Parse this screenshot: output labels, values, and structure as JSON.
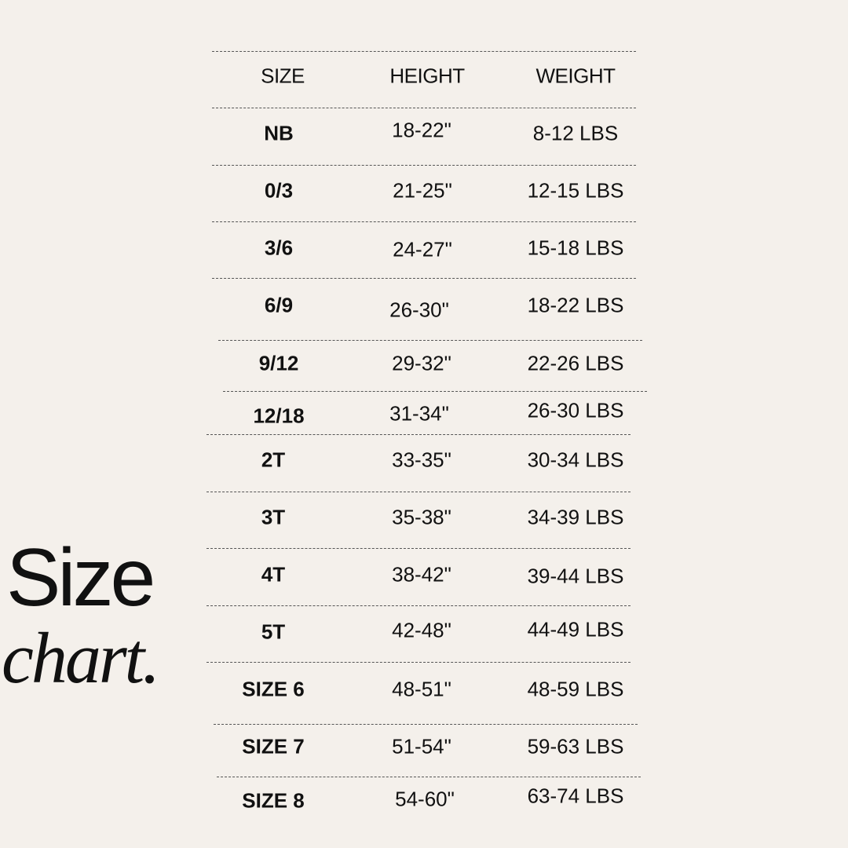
{
  "title": {
    "line1": "Size",
    "line2": "chart."
  },
  "table": {
    "headers": [
      "SIZE",
      "HEIGHT",
      "WEIGHT"
    ],
    "rows": [
      {
        "size": "NB",
        "height": "18-22\"",
        "weight": "8-12 LBS"
      },
      {
        "size": "0/3",
        "height": "21-25\"",
        "weight": "12-15 LBS"
      },
      {
        "size": "3/6",
        "height": "24-27\"",
        "weight": "15-18 LBS"
      },
      {
        "size": "6/9",
        "height": "26-30\"",
        "weight": "18-22 LBS"
      },
      {
        "size": "9/12",
        "height": "29-32\"",
        "weight": "22-26 LBS"
      },
      {
        "size": "12/18",
        "height": "31-34\"",
        "weight": "26-30 LBS"
      },
      {
        "size": "2T",
        "height": "33-35\"",
        "weight": "30-34 LBS"
      },
      {
        "size": "3T",
        "height": "35-38\"",
        "weight": "34-39 LBS"
      },
      {
        "size": "4T",
        "height": "38-42\"",
        "weight": "39-44 LBS"
      },
      {
        "size": "5T",
        "height": "42-48\"",
        "weight": "44-49 LBS"
      },
      {
        "size": "SIZE 6",
        "height": "48-51\"",
        "weight": "48-59 LBS"
      },
      {
        "size": "SIZE 7",
        "height": "51-54\"",
        "weight": "59-63 LBS"
      },
      {
        "size": "SIZE 8",
        "height": "54-60\"",
        "weight": "63-74 LBS"
      }
    ]
  }
}
